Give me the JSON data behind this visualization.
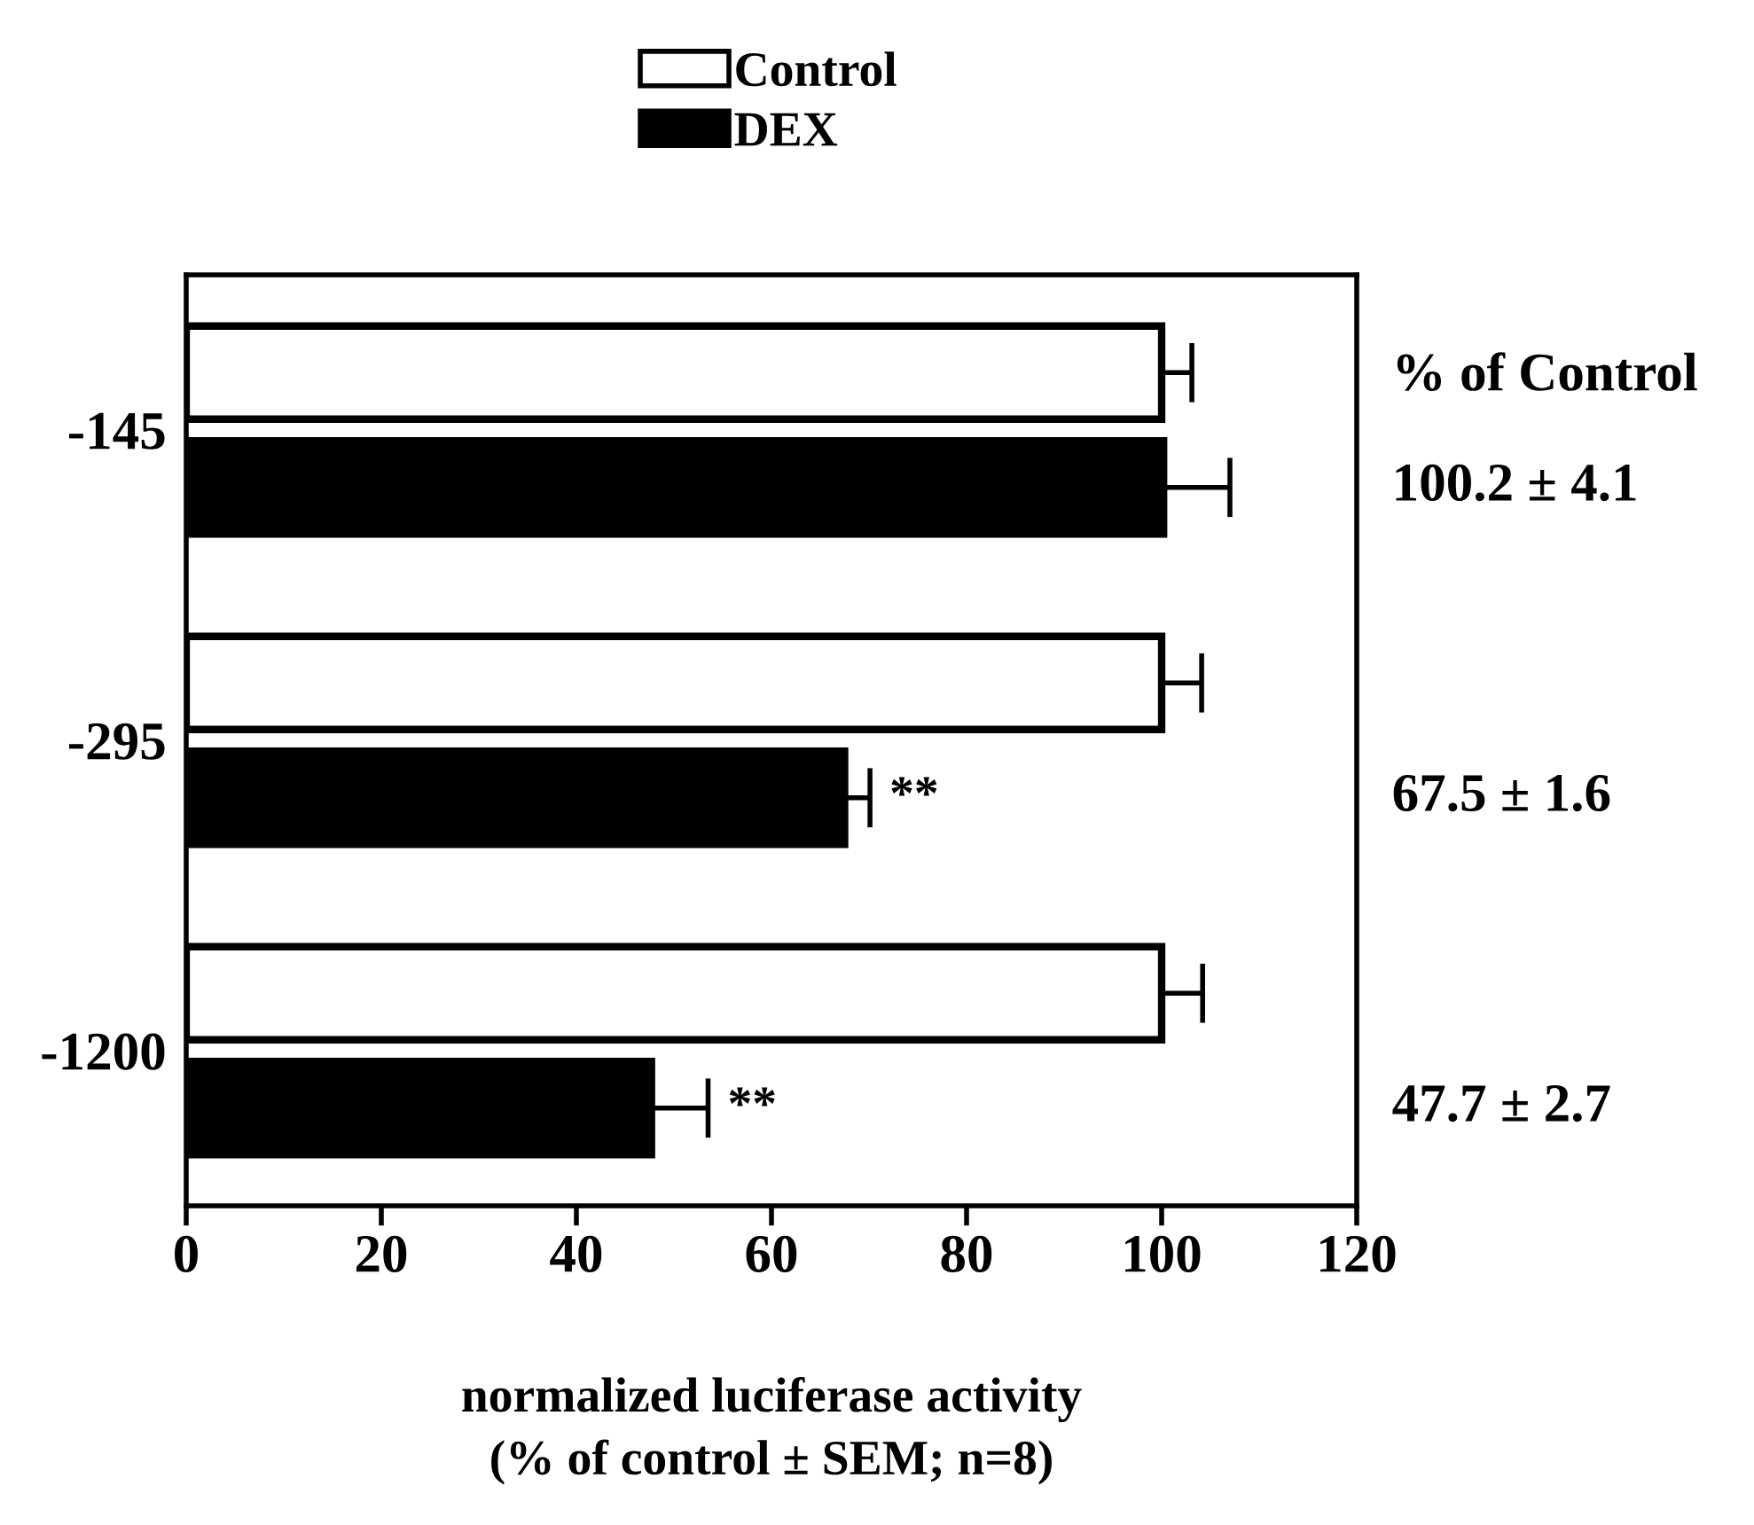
{
  "chart_data": {
    "type": "bar",
    "orientation": "horizontal",
    "categories": [
      "-145",
      "-295",
      "-1200"
    ],
    "series": [
      {
        "name": "Control",
        "color": "#ffffff",
        "values": [
          100,
          100,
          100
        ],
        "errors": [
          [
            100,
            103.1
          ],
          [
            100,
            104.1
          ],
          [
            100,
            104.2
          ]
        ]
      },
      {
        "name": "DEX",
        "color": "#000000",
        "values": [
          100.2,
          67.5,
          47.7
        ],
        "errors": [
          [
            100.2,
            107.0
          ],
          [
            67.5,
            70.1
          ],
          [
            47.7,
            53.5
          ]
        ]
      }
    ],
    "xlim": [
      0,
      120
    ],
    "xticks": [
      0,
      20,
      40,
      60,
      80,
      100,
      120
    ],
    "xlabel": "normalized luciferase activity\n(% of control ± SEM; n=8)",
    "legend": "top",
    "grid": false,
    "annotations": [
      "% of Control",
      "100.2 ± 4.1",
      "67.5 ± 1.6",
      "47.7 ± 2.7",
      "**",
      "**"
    ]
  }
}
